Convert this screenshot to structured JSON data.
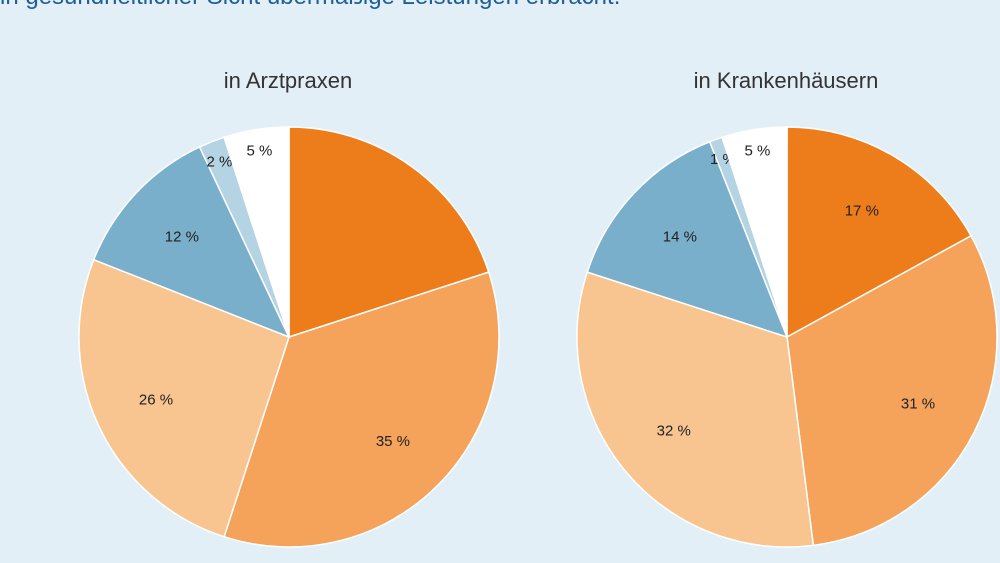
{
  "header": {
    "text": "in gesundheitlicher Sicht übermäßige Leistungen erbracht."
  },
  "colors": {
    "background": "#e3eff7",
    "dark_orange": "#ed7d1a",
    "orange": "#f5a25a",
    "light_orange": "#f8c48f",
    "blue": "#79afca",
    "light_blue": "#b4d3e3",
    "white": "#ffffff"
  },
  "chart_data": [
    {
      "type": "pie",
      "title": "in Arztpraxen",
      "slices": [
        {
          "value": 20,
          "label": "",
          "color": "#ed7d1a"
        },
        {
          "value": 35,
          "label": "35 %",
          "color": "#f5a25a"
        },
        {
          "value": 26,
          "label": "26 %",
          "color": "#f8c48f"
        },
        {
          "value": 12,
          "label": "12 %",
          "color": "#79afca"
        },
        {
          "value": 2,
          "label": "2 %",
          "color": "#b4d3e3"
        },
        {
          "value": 5,
          "label": "5 %",
          "color": "#ffffff"
        }
      ]
    },
    {
      "type": "pie",
      "title": "in Krankenhäusern",
      "slices": [
        {
          "value": 17,
          "label": "17 %",
          "color": "#ed7d1a"
        },
        {
          "value": 31,
          "label": "31 %",
          "color": "#f5a25a"
        },
        {
          "value": 32,
          "label": "32 %",
          "color": "#f8c48f"
        },
        {
          "value": 14,
          "label": "14 %",
          "color": "#79afca"
        },
        {
          "value": 1,
          "label": "1 %",
          "color": "#b4d3e3"
        },
        {
          "value": 5,
          "label": "5 %",
          "color": "#ffffff"
        }
      ]
    }
  ]
}
